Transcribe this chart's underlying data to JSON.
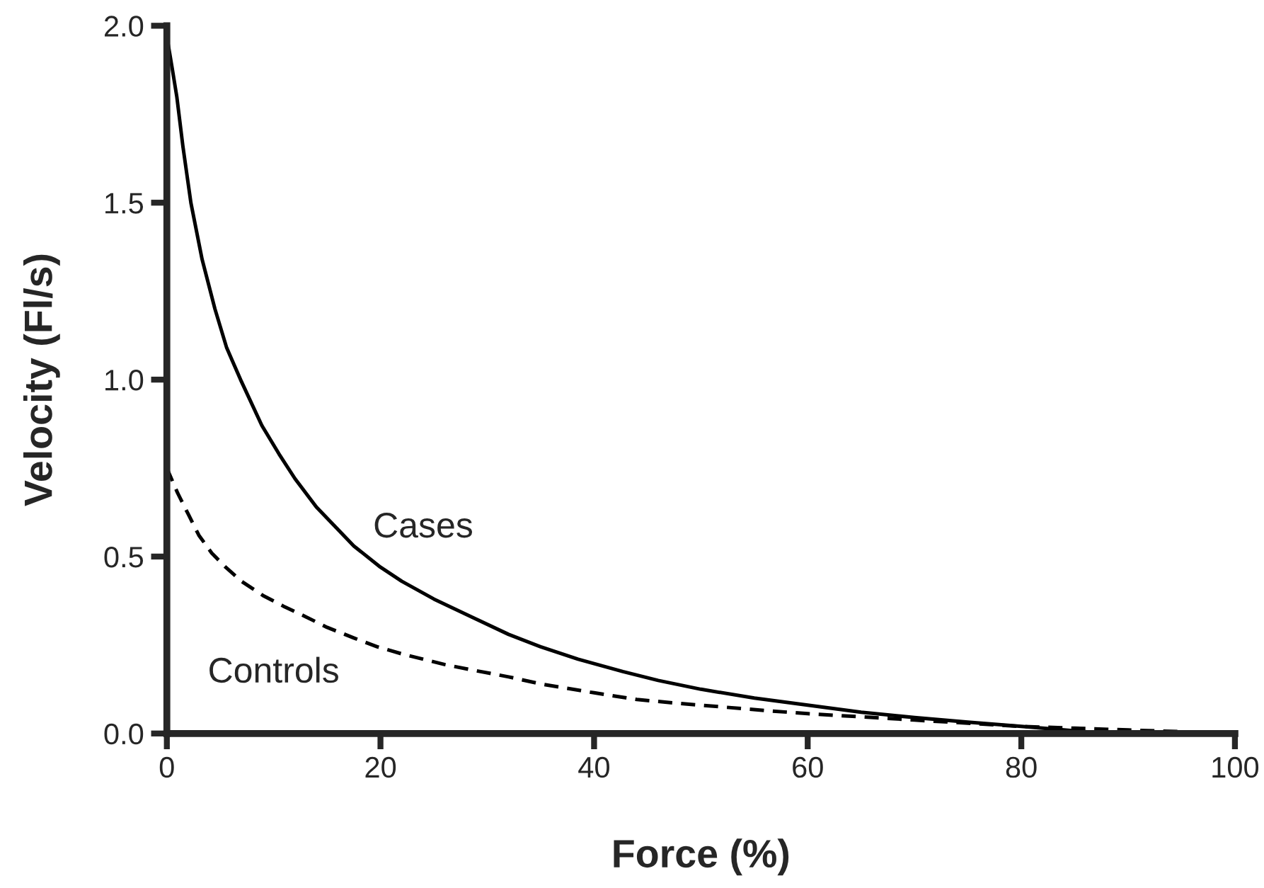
{
  "chart_data": {
    "type": "line",
    "xlabel": "Force (%)",
    "ylabel": "Velocity (Fl/s)",
    "xlim": [
      0,
      100
    ],
    "xticks": [
      0,
      20,
      40,
      60,
      80,
      100
    ],
    "ylim": [
      0,
      2
    ],
    "yticks": [
      {
        "value": 0,
        "label": "0.0"
      },
      {
        "value": 0.5,
        "label": "0.5"
      },
      {
        "value": 1,
        "label": "1.0"
      },
      {
        "value": 1.5,
        "label": "1.5"
      },
      {
        "value": 2,
        "label": "2.0"
      }
    ],
    "grid": false,
    "marker": "none",
    "series": [
      {
        "color": "#000000",
        "line_style": "solid",
        "x": [
          0,
          0.5,
          0.93,
          1.5,
          2.25,
          3.3,
          4.5,
          5.6,
          6.9,
          8.9,
          10.5,
          12,
          14,
          17.5,
          20,
          22,
          25,
          28.5,
          32,
          35,
          38.5,
          42.7,
          46,
          50,
          55,
          60,
          65,
          70,
          75,
          80,
          84,
          88
        ],
        "values": [
          1.97,
          1.88,
          1.8,
          1.66,
          1.5,
          1.34,
          1.2,
          1.09,
          1.0,
          0.87,
          0.79,
          0.72,
          0.64,
          0.53,
          0.47,
          0.43,
          0.38,
          0.33,
          0.28,
          0.245,
          0.21,
          0.175,
          0.15,
          0.125,
          0.1,
          0.08,
          0.06,
          0.045,
          0.032,
          0.02,
          0.01,
          0.0
        ]
      },
      {
        "color": "#000000",
        "line_style": "dashed",
        "x": [
          0,
          1,
          2,
          3,
          4.2,
          5.5,
          7,
          9,
          10.9,
          13,
          15,
          17.5,
          19.7,
          22,
          24,
          26,
          28.5,
          32,
          35,
          40,
          44,
          48,
          52,
          56,
          60,
          65,
          70,
          75,
          80,
          85,
          90,
          95,
          100
        ],
        "values": [
          0.75,
          0.68,
          0.62,
          0.56,
          0.51,
          0.47,
          0.43,
          0.39,
          0.36,
          0.33,
          0.3,
          0.27,
          0.245,
          0.225,
          0.21,
          0.195,
          0.18,
          0.16,
          0.14,
          0.115,
          0.096,
          0.085,
          0.075,
          0.065,
          0.056,
          0.047,
          0.038,
          0.029,
          0.02,
          0.015,
          0.01,
          0.005,
          0.0
        ]
      }
    ],
    "annotations": [
      "Cases",
      "Controls"
    ]
  }
}
